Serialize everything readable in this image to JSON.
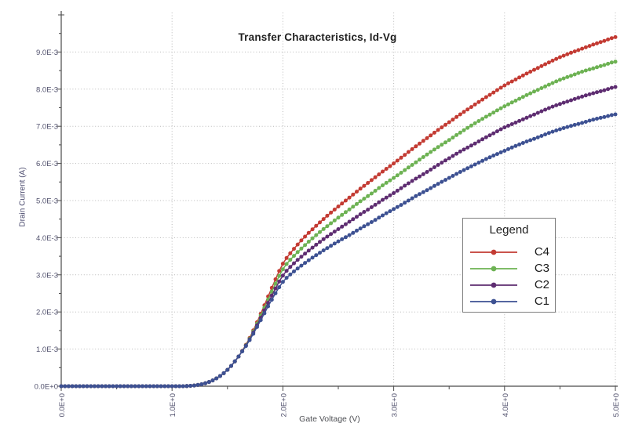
{
  "chart": {
    "title": "Transfer Characteristics, Id-Vg",
    "x_axis_title": "Gate Voltage (V)",
    "y_axis_title": "Drain Current (A)",
    "legend_title": "Legend"
  },
  "colors": {
    "series_c4": "#c33b33",
    "series_c3": "#6db253",
    "series_c2": "#5e2d71",
    "series_c1": "#3d5192",
    "grid": "#b9b9b9",
    "axis": "#4a4a4a",
    "tick_label": "#51516d"
  },
  "chart_data": {
    "type": "line",
    "title": "Transfer Characteristics, Id-Vg",
    "xlabel": "Gate Voltage (V)",
    "ylabel": "Drain Current (A)",
    "grid": "dotted, at major ticks",
    "legend_position": "right-middle",
    "legend_title": "Legend",
    "xlim": [
      0,
      5
    ],
    "ylim": [
      0,
      0.0101
    ],
    "x_unit": "V",
    "y_unit": "A",
    "y_value_multiplier": 0.001,
    "x_tick_labels": [
      "0.0E+0",
      "1.0E+0",
      "2.0E+0",
      "3.0E+0",
      "4.0E+0",
      "5.0E+0"
    ],
    "x_tick_values": [
      0,
      1,
      2,
      3,
      4,
      5
    ],
    "x_minor_tick_step": 0.5,
    "y_tick_labels": [
      "0.0E+0",
      "1.0E-3",
      "2.0E-3",
      "3.0E-3",
      "4.0E-3",
      "5.0E-3",
      "6.0E-3",
      "7.0E-3",
      "8.0E-3",
      "9.0E-3"
    ],
    "y_tick_values_e3": [
      0,
      1,
      2,
      3,
      4,
      5,
      6,
      7,
      8,
      9
    ],
    "y_minor_tick_step_e3": 0.5,
    "x": [
      0,
      0.1,
      0.2,
      0.3,
      0.4,
      0.5,
      0.6,
      0.7,
      0.8,
      0.9,
      1.0,
      1.1,
      1.2,
      1.3,
      1.4,
      1.5,
      1.6,
      1.7,
      1.8,
      1.9,
      2.0,
      2.1,
      2.2,
      2.3,
      2.4,
      2.5,
      2.6,
      2.7,
      2.8,
      2.9,
      3.0,
      3.1,
      3.2,
      3.3,
      3.4,
      3.5,
      3.6,
      3.7,
      3.8,
      3.9,
      4.0,
      4.1,
      4.2,
      4.3,
      4.4,
      4.5,
      4.6,
      4.7,
      4.8,
      4.9,
      5.0
    ],
    "series": [
      {
        "name": "C4",
        "color": "#c33b33",
        "values_e3": [
          0,
          0,
          0,
          0,
          0,
          0,
          0,
          0,
          0,
          0,
          0,
          0,
          0.02,
          0.08,
          0.21,
          0.44,
          0.8,
          1.3,
          1.95,
          2.65,
          3.3,
          3.7,
          4.03,
          4.32,
          4.59,
          4.84,
          5.08,
          5.32,
          5.55,
          5.78,
          6.0,
          6.23,
          6.46,
          6.68,
          6.9,
          7.11,
          7.32,
          7.52,
          7.72,
          7.91,
          8.1,
          8.26,
          8.42,
          8.57,
          8.72,
          8.86,
          8.98,
          9.09,
          9.2,
          9.3,
          9.4
        ]
      },
      {
        "name": "C3",
        "color": "#6db253",
        "values_e3": [
          0,
          0,
          0,
          0,
          0,
          0,
          0,
          0,
          0,
          0,
          0,
          0,
          0.02,
          0.08,
          0.21,
          0.44,
          0.8,
          1.28,
          1.9,
          2.55,
          3.15,
          3.51,
          3.8,
          4.07,
          4.31,
          4.54,
          4.76,
          4.98,
          5.19,
          5.41,
          5.61,
          5.82,
          6.03,
          6.24,
          6.44,
          6.63,
          6.83,
          7.02,
          7.2,
          7.37,
          7.54,
          7.69,
          7.84,
          7.98,
          8.12,
          8.25,
          8.36,
          8.47,
          8.56,
          8.65,
          8.74
        ]
      },
      {
        "name": "C2",
        "color": "#5e2d71",
        "values_e3": [
          0,
          0,
          0,
          0,
          0,
          0,
          0,
          0,
          0,
          0,
          0,
          0,
          0.02,
          0.08,
          0.21,
          0.44,
          0.8,
          1.26,
          1.84,
          2.44,
          2.98,
          3.31,
          3.57,
          3.81,
          4.03,
          4.23,
          4.43,
          4.63,
          4.82,
          5.02,
          5.2,
          5.4,
          5.59,
          5.77,
          5.96,
          6.14,
          6.32,
          6.48,
          6.65,
          6.81,
          6.97,
          7.1,
          7.23,
          7.36,
          7.49,
          7.6,
          7.7,
          7.8,
          7.89,
          7.97,
          8.06
        ]
      },
      {
        "name": "C1",
        "color": "#3d5192",
        "values_e3": [
          0,
          0,
          0,
          0,
          0,
          0,
          0,
          0,
          0,
          0,
          0,
          0,
          0.02,
          0.08,
          0.21,
          0.44,
          0.8,
          1.24,
          1.78,
          2.33,
          2.81,
          3.09,
          3.32,
          3.53,
          3.72,
          3.9,
          4.07,
          4.25,
          4.42,
          4.6,
          4.77,
          4.94,
          5.12,
          5.28,
          5.45,
          5.61,
          5.77,
          5.92,
          6.07,
          6.21,
          6.34,
          6.47,
          6.59,
          6.7,
          6.82,
          6.92,
          7.01,
          7.09,
          7.18,
          7.25,
          7.32
        ]
      }
    ]
  }
}
